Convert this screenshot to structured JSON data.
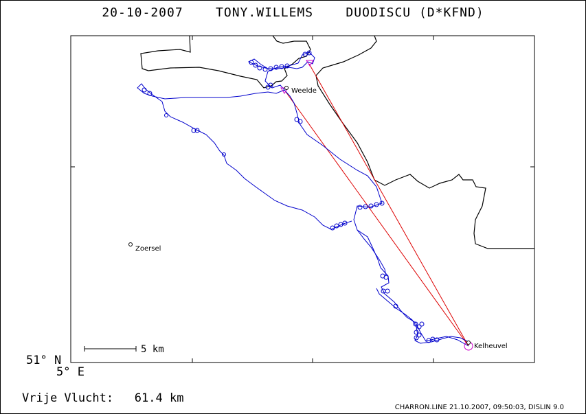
{
  "header": {
    "title": "20-10-2007    TONY.WILLEMS    DUODISCU (D*KFND)"
  },
  "map": {
    "places": [
      {
        "name": "Weelde"
      },
      {
        "name": "Zoersel"
      },
      {
        "name": "Kelheuvel"
      }
    ],
    "scale_label": "5 km",
    "lat_label": "51° N",
    "lon_label": "5° E",
    "colors": {
      "track": "#0000cc",
      "task": "#dd0000",
      "turnpoint": "#cc00cc",
      "border": "#000000"
    }
  },
  "stats": {
    "distance_label": "Vrije Vlucht:",
    "distance_value": "61.4 km"
  },
  "footer": {
    "text": "CHARRON.LINE 21.10.2007, 09:50:03, DISLIN 9.0"
  }
}
